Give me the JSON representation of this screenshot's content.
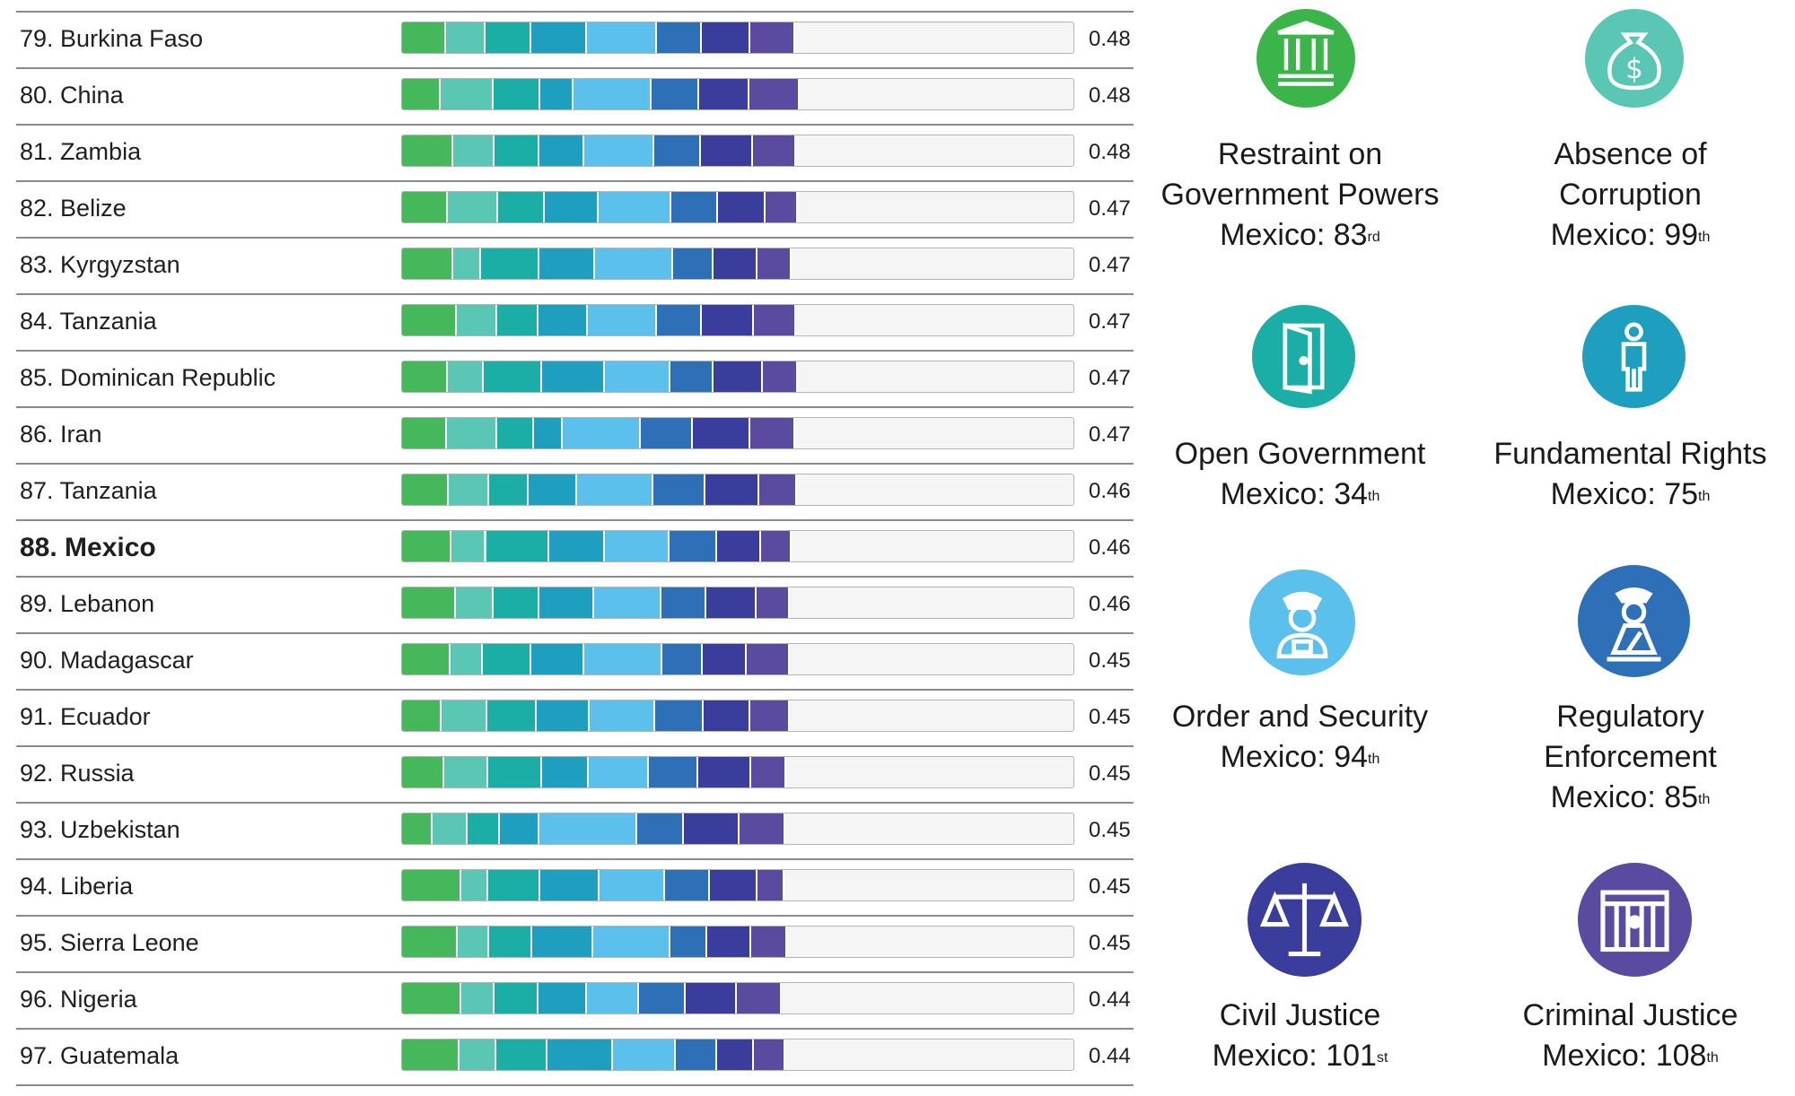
{
  "chart_data": {
    "type": "stacked-bar",
    "title": "",
    "xlabel": "",
    "ylabel": "",
    "xlim": [
      0,
      1
    ],
    "series_names": [
      "Restraint on Government Powers",
      "Absence of Corruption",
      "Open Government",
      "Fundamental Rights",
      "Order and Security",
      "Regulatory Enforcement",
      "Civil Justice",
      "Criminal Justice"
    ],
    "series_colors": [
      "#46b85c",
      "#5ac6b4",
      "#1aaea6",
      "#1e9fbf",
      "#5bc0ec",
      "#2e70b8",
      "#3a3d9c",
      "#5a4aa0"
    ],
    "rows": [
      {
        "rank": "79.",
        "country": "Burkina Faso",
        "score": "0.48",
        "bold": false,
        "segments": [
          0.065,
          0.059,
          0.068,
          0.084,
          0.104,
          0.066,
          0.073,
          0.066
        ]
      },
      {
        "rank": "80.",
        "country": "China",
        "score": "0.48",
        "bold": false,
        "segments": [
          0.057,
          0.08,
          0.069,
          0.049,
          0.117,
          0.07,
          0.076,
          0.074
        ]
      },
      {
        "rank": "81.",
        "country": "Zambia",
        "score": "0.48",
        "bold": false,
        "segments": [
          0.076,
          0.062,
          0.066,
          0.068,
          0.104,
          0.069,
          0.078,
          0.064
        ]
      },
      {
        "rank": "82.",
        "country": "Belize",
        "score": "0.47",
        "bold": false,
        "segments": [
          0.068,
          0.075,
          0.07,
          0.08,
          0.108,
          0.069,
          0.071,
          0.049
        ]
      },
      {
        "rank": "83.",
        "country": "Kyrgyzstan",
        "score": "0.47",
        "bold": false,
        "segments": [
          0.076,
          0.042,
          0.086,
          0.083,
          0.117,
          0.06,
          0.065,
          0.051
        ]
      },
      {
        "rank": "84.",
        "country": "Tanzania",
        "score": "0.47",
        "bold": false,
        "segments": [
          0.082,
          0.06,
          0.061,
          0.074,
          0.103,
          0.066,
          0.078,
          0.063
        ]
      },
      {
        "rank": "85.",
        "country": "Dominican Republic",
        "score": "0.47",
        "bold": false,
        "segments": [
          0.068,
          0.053,
          0.087,
          0.094,
          0.098,
          0.064,
          0.073,
          0.053
        ]
      },
      {
        "rank": "86.",
        "country": "Iran",
        "score": "0.47",
        "bold": false,
        "segments": [
          0.067,
          0.075,
          0.054,
          0.043,
          0.116,
          0.078,
          0.086,
          0.066
        ]
      },
      {
        "rank": "87.",
        "country": "Tanzania",
        "score": "0.46",
        "bold": false,
        "segments": [
          0.069,
          0.061,
          0.058,
          0.073,
          0.113,
          0.078,
          0.08,
          0.056
        ]
      },
      {
        "rank": "88.",
        "country": "Mexico",
        "score": "0.46",
        "bold": true,
        "segments": [
          0.073,
          0.052,
          0.094,
          0.083,
          0.097,
          0.07,
          0.066,
          0.045
        ]
      },
      {
        "rank": "89.",
        "country": "Lebanon",
        "score": "0.46",
        "bold": false,
        "segments": [
          0.08,
          0.057,
          0.068,
          0.081,
          0.101,
          0.066,
          0.075,
          0.05
        ]
      },
      {
        "rank": "90.",
        "country": "Madagascar",
        "score": "0.45",
        "bold": false,
        "segments": [
          0.072,
          0.048,
          0.073,
          0.079,
          0.116,
          0.06,
          0.066,
          0.063
        ]
      },
      {
        "rank": "91.",
        "country": "Ecuador",
        "score": "0.45",
        "bold": false,
        "segments": [
          0.059,
          0.068,
          0.073,
          0.08,
          0.097,
          0.072,
          0.07,
          0.058
        ]
      },
      {
        "rank": "92.",
        "country": "Russia",
        "score": "0.45",
        "bold": false,
        "segments": [
          0.063,
          0.066,
          0.08,
          0.069,
          0.089,
          0.074,
          0.079,
          0.052
        ]
      },
      {
        "rank": "93.",
        "country": "Uzbekistan",
        "score": "0.45",
        "bold": false,
        "segments": [
          0.046,
          0.052,
          0.048,
          0.058,
          0.146,
          0.07,
          0.083,
          0.068
        ]
      },
      {
        "rank": "94.",
        "country": "Liberia",
        "score": "0.45",
        "bold": false,
        "segments": [
          0.088,
          0.041,
          0.077,
          0.088,
          0.098,
          0.066,
          0.072,
          0.04
        ]
      },
      {
        "rank": "95.",
        "country": "Sierra Leone",
        "score": "0.45",
        "bold": false,
        "segments": [
          0.083,
          0.047,
          0.064,
          0.091,
          0.115,
          0.055,
          0.065,
          0.054
        ]
      },
      {
        "rank": "96.",
        "country": "Nigeria",
        "score": "0.44",
        "bold": false,
        "segments": [
          0.088,
          0.05,
          0.065,
          0.073,
          0.077,
          0.069,
          0.077,
          0.066
        ]
      },
      {
        "rank": "97.",
        "country": "Guatemala",
        "score": "0.44",
        "bold": false,
        "segments": [
          0.085,
          0.055,
          0.077,
          0.097,
          0.094,
          0.061,
          0.055,
          0.047
        ]
      }
    ]
  },
  "factors": [
    {
      "name": "restraint",
      "lines": [
        "Restraint on",
        "Government Powers"
      ],
      "country_label": "Mexico: 83",
      "ordinal": "rd",
      "color": "#3bb54a",
      "icon": "government-building-icon"
    },
    {
      "name": "corruption",
      "lines": [
        "Absence of",
        "Corruption"
      ],
      "country_label": "Mexico: 99",
      "ordinal": "th",
      "color": "#5ac6b4",
      "icon": "money-bag-icon"
    },
    {
      "name": "open-government",
      "lines": [
        "Open Government"
      ],
      "country_label": "Mexico: 34",
      "ordinal": "th",
      "color": "#1aaea6",
      "icon": "open-door-icon"
    },
    {
      "name": "fundamental-rights",
      "lines": [
        "Fundamental Rights"
      ],
      "country_label": "Mexico: 75",
      "ordinal": "th",
      "color": "#1e9fbf",
      "icon": "person-icon"
    },
    {
      "name": "order-security",
      "lines": [
        "Order and Security"
      ],
      "country_label": "Mexico: 94",
      "ordinal": "th",
      "color": "#5bc0ec",
      "icon": "police-officer-icon"
    },
    {
      "name": "regulatory",
      "lines": [
        "Regulatory",
        "Enforcement"
      ],
      "country_label": "Mexico: 85",
      "ordinal": "th",
      "color": "#2e70b8",
      "icon": "inspector-icon"
    },
    {
      "name": "civil-justice",
      "lines": [
        "Civil Justice"
      ],
      "country_label": "Mexico: 101",
      "ordinal": "st",
      "color": "#3a3d9c",
      "icon": "scales-icon"
    },
    {
      "name": "criminal-justice",
      "lines": [
        "Criminal Justice"
      ],
      "country_label": "Mexico: 108",
      "ordinal": "th",
      "color": "#5a4aa0",
      "icon": "prison-bars-icon"
    }
  ]
}
